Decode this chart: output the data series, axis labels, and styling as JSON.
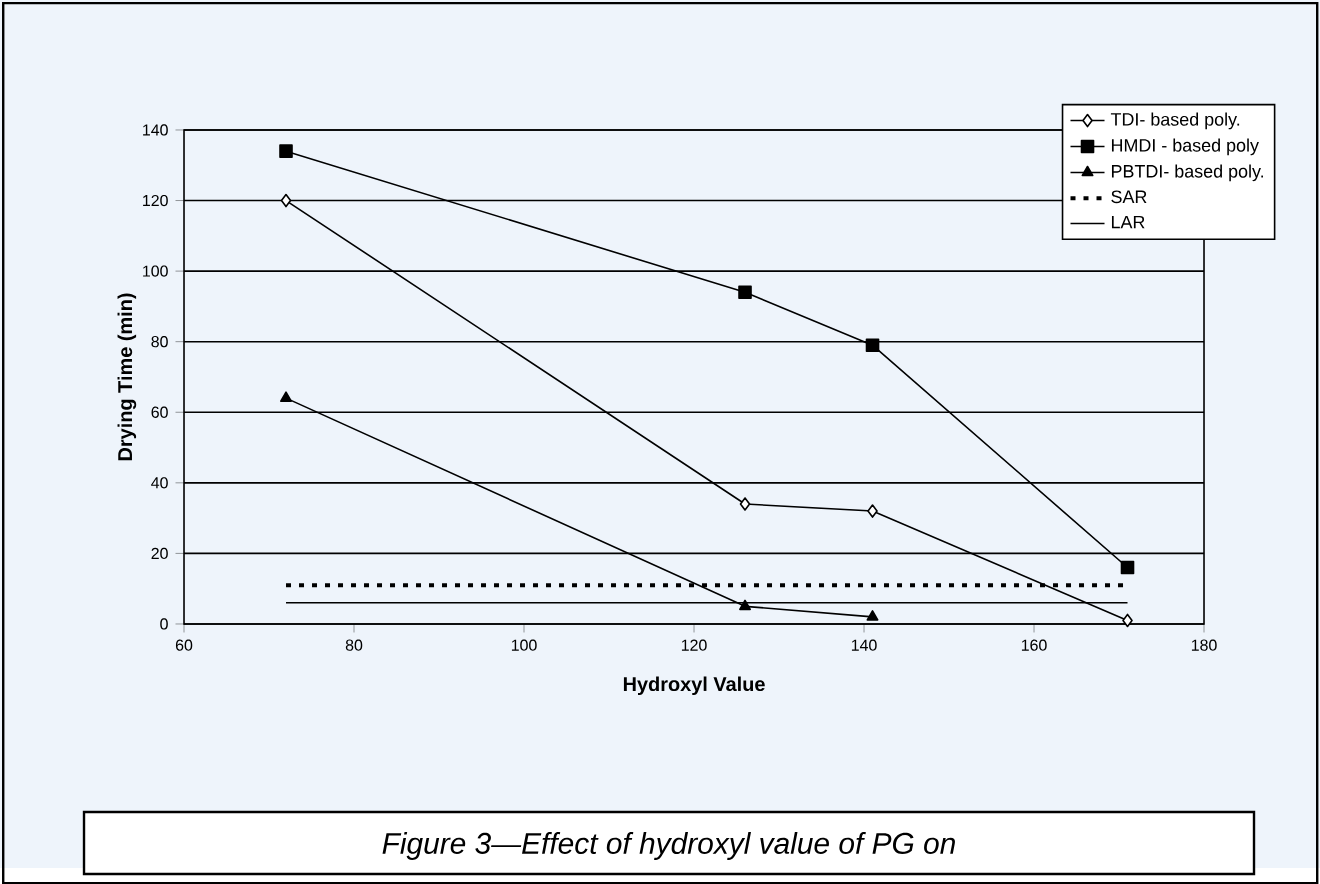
{
  "chart_data": {
    "type": "line",
    "xlabel": "Hydroxyl Value",
    "ylabel": "Drying Time (min)",
    "x": [
      72,
      126,
      141,
      171
    ],
    "series": [
      {
        "name": "TDI- based poly.",
        "color": "#000000",
        "marker": "diamond",
        "line_style": "solid",
        "values": [
          120,
          34,
          32,
          1
        ]
      },
      {
        "name": "HMDI - based poly",
        "color": "#000000",
        "marker": "square",
        "line_style": "solid",
        "values": [
          134,
          94,
          79,
          16
        ]
      },
      {
        "name": "PBTDI- based poly.",
        "color": "#000000",
        "marker": "triangle",
        "line_style": "solid",
        "values": [
          64,
          5,
          2,
          null
        ]
      },
      {
        "name": "SAR",
        "color": "#000000",
        "marker": "none",
        "line_style": "dotted",
        "values": [
          11,
          11,
          11,
          11
        ]
      },
      {
        "name": "LAR",
        "color": "#000000",
        "marker": "none",
        "line_style": "solid",
        "values": [
          6,
          6,
          6,
          6
        ]
      }
    ],
    "xlim": [
      60,
      180
    ],
    "xticks": [
      60,
      80,
      100,
      120,
      140,
      160,
      180
    ],
    "ylim": [
      0,
      140
    ],
    "yticks": [
      0,
      20,
      40,
      60,
      80,
      100,
      120,
      140
    ],
    "grid": "y",
    "legend": "top right",
    "annotations": [
      "Figure 3—Effect of hydroxyl value of PG on"
    ]
  }
}
